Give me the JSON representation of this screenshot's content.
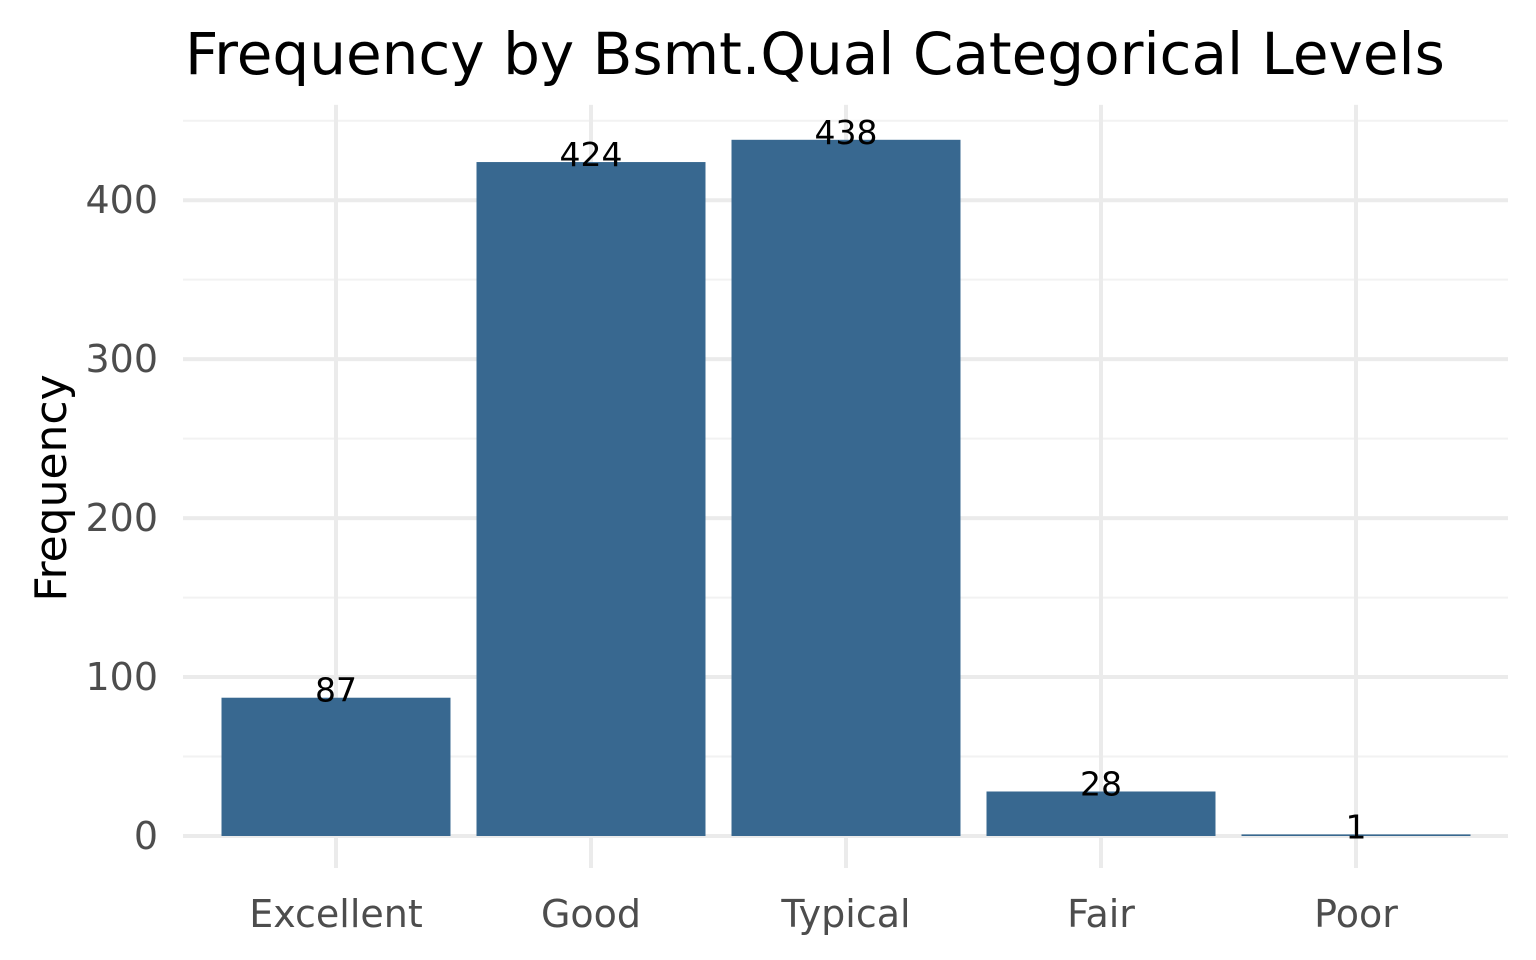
{
  "chart_data": {
    "type": "bar",
    "title": "Frequency by Bsmt.Qual Categorical Levels",
    "xlabel": "",
    "ylabel": "Frequency",
    "categories": [
      "Excellent",
      "Good",
      "Typical",
      "Fair",
      "Poor"
    ],
    "values": [
      87,
      424,
      438,
      28,
      1
    ],
    "data_labels": [
      "87",
      "424",
      "438",
      "28",
      "1"
    ],
    "yticks": [
      0,
      100,
      200,
      300,
      400
    ],
    "ytick_labels": [
      "0",
      "100",
      "200",
      "300",
      "400"
    ],
    "ylim": [
      0,
      460
    ],
    "grid": true,
    "legend": "none",
    "bar_color": "#386890"
  }
}
